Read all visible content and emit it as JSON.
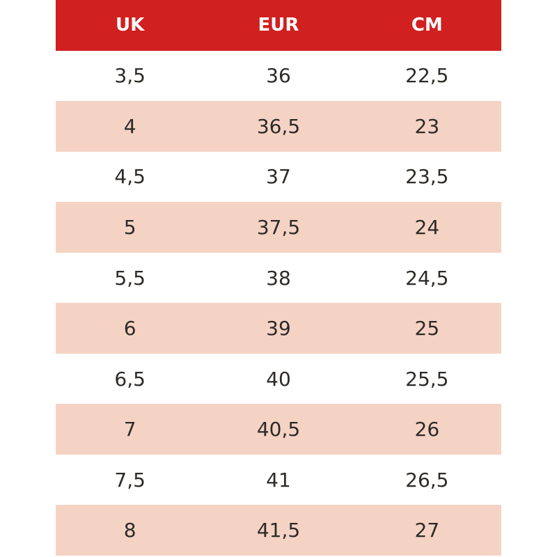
{
  "chart_data": {
    "type": "table",
    "columns": [
      "UK",
      "EUR",
      "CM"
    ],
    "rows": [
      [
        "3,5",
        "36",
        "22,5"
      ],
      [
        "4",
        "36,5",
        "23"
      ],
      [
        "4,5",
        "37",
        "23,5"
      ],
      [
        "5",
        "37,5",
        "24"
      ],
      [
        "5,5",
        "38",
        "24,5"
      ],
      [
        "6",
        "39",
        "25"
      ],
      [
        "6,5",
        "40",
        "25,5"
      ],
      [
        "7",
        "40,5",
        "26"
      ],
      [
        "7,5",
        "41",
        "26,5"
      ],
      [
        "8",
        "41,5",
        "27"
      ]
    ],
    "layout": {
      "striped": true,
      "stripe_pattern": "header red, then rows alternate white / peach starting with white",
      "columns_equal_width": true,
      "text_alignment": "center"
    }
  },
  "colors": {
    "header_bg": "#d0201f",
    "header_text": "#ffffff",
    "row_stripe": "#f5d3c4",
    "row_plain": "#ffffff",
    "cell_text": "#2d2a27"
  }
}
